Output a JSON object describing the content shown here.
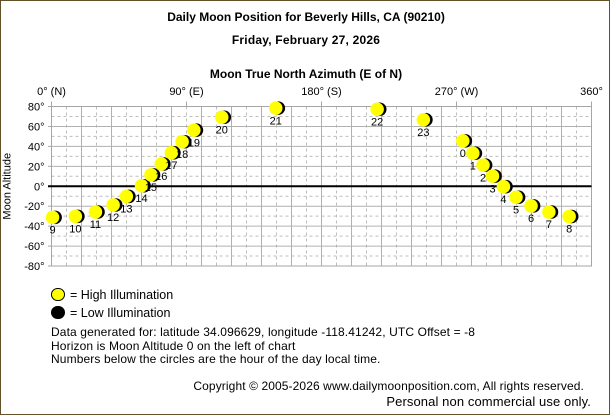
{
  "page": {
    "title": "Daily Moon Position for Beverly Hills, CA (90210)",
    "date": "Friday, February 27, 2026"
  },
  "chart_data": {
    "type": "scatter",
    "title": "Moon True North Azimuth (E of N)",
    "ylabel": "Moon Altitude",
    "xlim": [
      0,
      360
    ],
    "ylim": [
      -80,
      80
    ],
    "grid_step_deg": 10,
    "horizon_altitude": 0,
    "x_ticks": [
      {
        "az": 0,
        "label": "0° (N)"
      },
      {
        "az": 90,
        "label": "90° (E)"
      },
      {
        "az": 180,
        "label": "180° (S)"
      },
      {
        "az": 270,
        "label": "270° (W)"
      },
      {
        "az": 360,
        "label": "360°"
      }
    ],
    "y_ticks": [
      {
        "alt": 80,
        "label": "80°"
      },
      {
        "alt": 60,
        "label": "60°"
      },
      {
        "alt": 40,
        "label": "40°"
      },
      {
        "alt": 20,
        "label": "20°"
      },
      {
        "alt": 0,
        "label": "0°"
      },
      {
        "alt": -20,
        "label": "-20°"
      },
      {
        "alt": -40,
        "label": "-40°"
      },
      {
        "alt": -60,
        "label": "-60°"
      },
      {
        "alt": -80,
        "label": "-80°"
      }
    ],
    "points": [
      {
        "hour": "9",
        "azimuth": 0.7,
        "altitude": -31.2
      },
      {
        "hour": "10",
        "azimuth": 15.9,
        "altitude": -30.2
      },
      {
        "hour": "11",
        "azimuth": 29.3,
        "altitude": -25.8
      },
      {
        "hour": "12",
        "azimuth": 41.1,
        "altitude": -18.8
      },
      {
        "hour": "13",
        "azimuth": 49.9,
        "altitude": -10.2
      },
      {
        "hour": "14",
        "azimuth": 60.0,
        "altitude": 0.5
      },
      {
        "hour": "15",
        "azimuth": 66.3,
        "altitude": 11.4
      },
      {
        "hour": "16",
        "azimuth": 73.2,
        "altitude": 22.3
      },
      {
        "hour": "17",
        "azimuth": 79.9,
        "altitude": 33.6
      },
      {
        "hour": "18",
        "azimuth": 87.1,
        "altitude": 44.6
      },
      {
        "hour": "19",
        "azimuth": 94.9,
        "altitude": 56.3
      },
      {
        "hour": "20",
        "azimuth": 113.5,
        "altitude": 69.2
      },
      {
        "hour": "21",
        "azimuth": 149.5,
        "altitude": 78.4
      },
      {
        "hour": "22",
        "azimuth": 217.1,
        "altitude": 77.2
      },
      {
        "hour": "23",
        "azimuth": 247.9,
        "altitude": 66.7
      },
      {
        "hour": "0",
        "azimuth": 274.2,
        "altitude": 45.5
      },
      {
        "hour": "1",
        "azimuth": 280.9,
        "altitude": 33.1
      },
      {
        "hour": "2",
        "azimuth": 287.7,
        "altitude": 21.2
      },
      {
        "hour": "3",
        "azimuth": 294.0,
        "altitude": 10.2
      },
      {
        "hour": "4",
        "azimuth": 301.3,
        "altitude": -0.4
      },
      {
        "hour": "5",
        "azimuth": 309.7,
        "altitude": -11.0
      },
      {
        "hour": "6",
        "azimuth": 319.7,
        "altitude": -19.7
      },
      {
        "hour": "7",
        "azimuth": 331.6,
        "altitude": -25.8
      },
      {
        "hour": "8",
        "azimuth": 345.1,
        "altitude": -30.3
      }
    ],
    "colors": {
      "moon_fill": "#ffff00",
      "moon_shadow": "#000000",
      "grid_major": "#b0b0b0",
      "grid_minor": "#bdbdbd",
      "plot_border": "#a6a6a6",
      "horizon": "#000000"
    }
  },
  "legend": {
    "high": {
      "symbol": "yellow-circle",
      "label": "= High Illumination"
    },
    "low": {
      "symbol": "black-circle",
      "label": "= Low Illumination"
    }
  },
  "info": {
    "line1": "Data generated for: latitude 34.096629, longitude -118.41242, UTC Offset = -8",
    "line2": "Horizon is Moon Altitude 0 on the left of chart",
    "line3": "Numbers below the circles are the hour of the day local time."
  },
  "footer": {
    "line1": "Copyright © 2005-2026 www.dailymoonposition.com, All rights reserved.",
    "line2": "Personal non commercial use only."
  }
}
